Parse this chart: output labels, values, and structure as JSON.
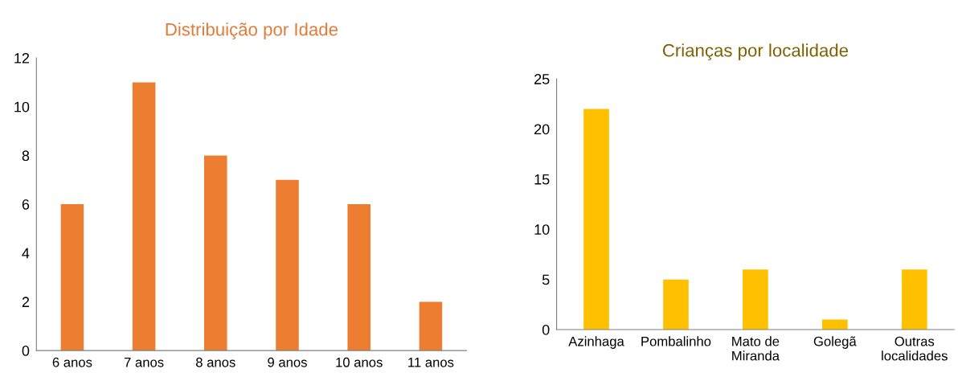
{
  "chart_data": [
    {
      "type": "bar",
      "title": "Distribuição por Idade",
      "categories": [
        "6 anos",
        "7 anos",
        "8 anos",
        "9 anos",
        "10 anos",
        "11 anos"
      ],
      "values": [
        6,
        11,
        8,
        7,
        6,
        2
      ],
      "color": "#ed7d31",
      "ylim": [
        0,
        12
      ],
      "yticks": [
        0,
        2,
        4,
        6,
        8,
        10,
        12
      ],
      "grid": false,
      "legend": false
    },
    {
      "type": "bar",
      "title": "Crianças por localidade",
      "categories": [
        "Azinhaga",
        "Pombalinho",
        "Mato de\nMiranda",
        "Golegã",
        "Outras\nlocalidades"
      ],
      "values": [
        22,
        5,
        6,
        1,
        6
      ],
      "color": "#ffc000",
      "ylim": [
        0,
        25
      ],
      "yticks": [
        0,
        5,
        10,
        15,
        20,
        25
      ],
      "grid": false,
      "legend": false
    }
  ]
}
